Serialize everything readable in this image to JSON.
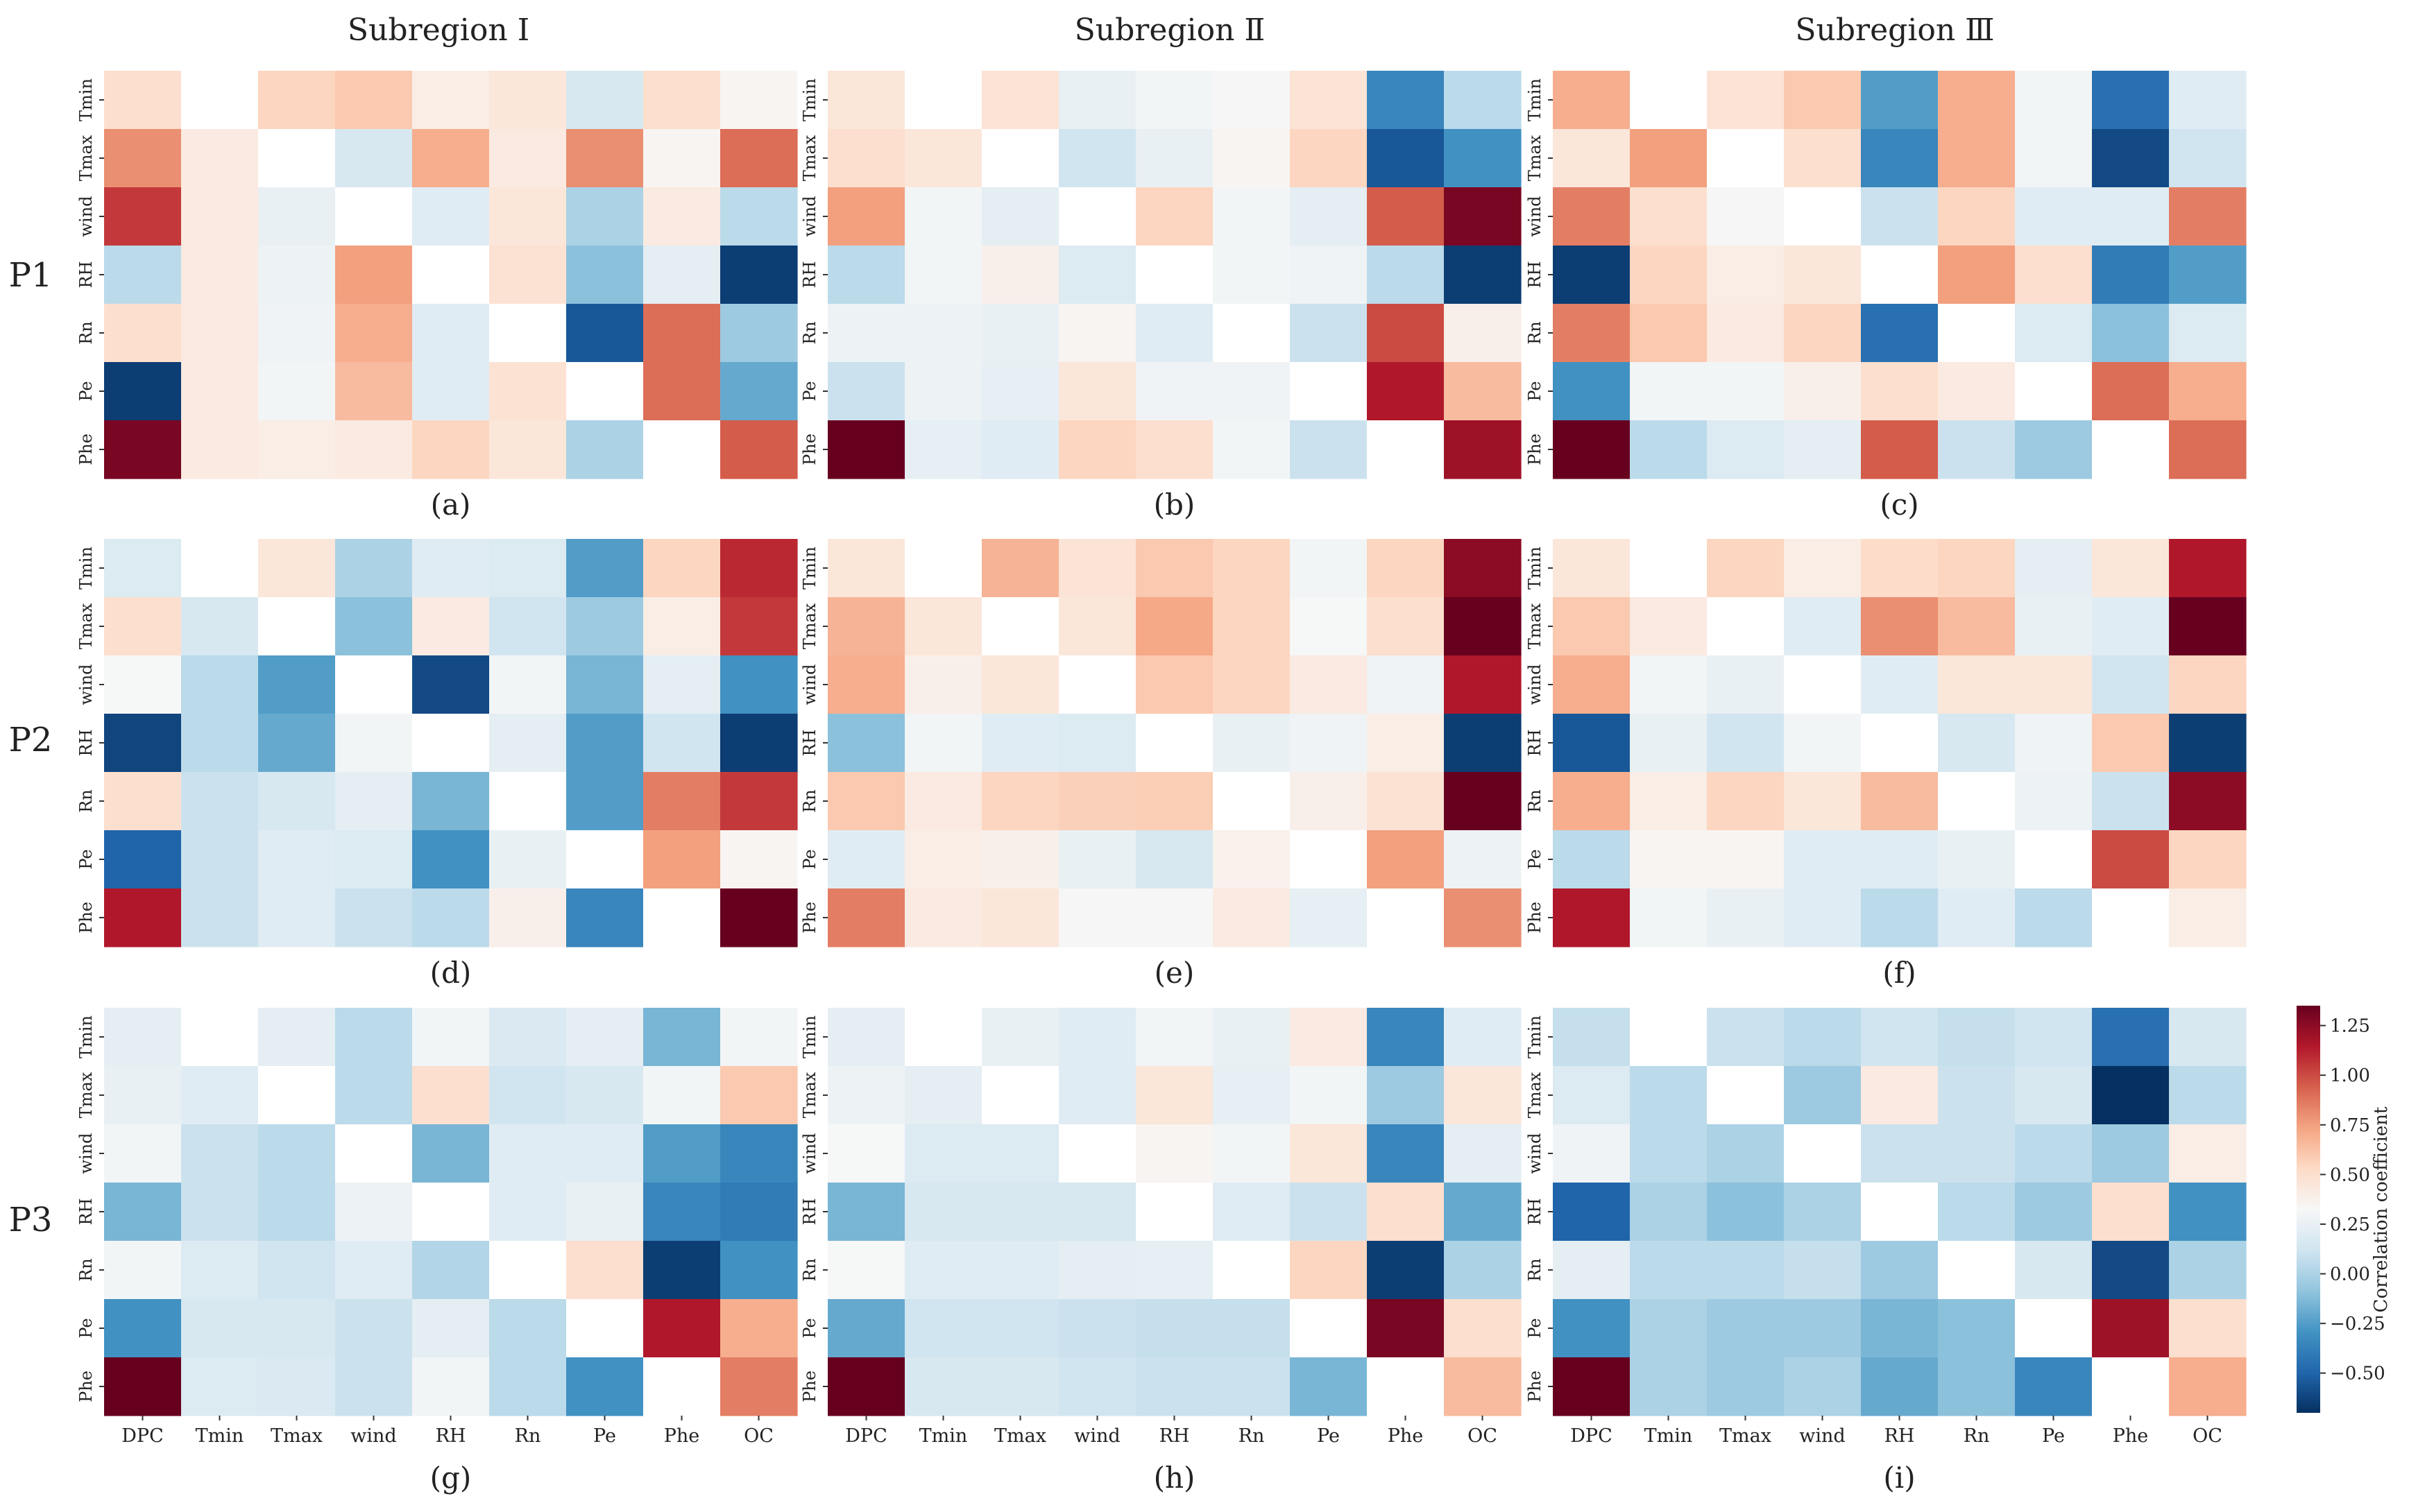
{
  "colorbar": {
    "label": "Correlation coefficient",
    "range": [
      -0.7,
      1.35
    ],
    "ticks": [
      "1.25",
      "1.00",
      "0.75",
      "0.50",
      "0.25",
      "0.00",
      "−0.25",
      "−0.50"
    ],
    "tick_values": [
      1.25,
      1.0,
      0.75,
      0.5,
      0.25,
      0.0,
      -0.25,
      -0.5
    ]
  },
  "column_titles": [
    "Subregion Ⅰ",
    "Subregion Ⅱ",
    "Subregion Ⅲ"
  ],
  "row_labels": [
    "P1",
    "P2",
    "P3"
  ],
  "chart_data": [
    {
      "type": "heatmap",
      "panel": "(a)",
      "row": "P1",
      "subregion": "Subregion Ⅰ",
      "x_categories": [
        "DPC",
        "Tmin",
        "Tmax",
        "wind",
        "RH",
        "Rn",
        "Pe",
        "Phe",
        "OC"
      ],
      "y_categories": [
        "Tmin",
        "Tmax",
        "wind",
        "RH",
        "Rn",
        "Pe",
        "Phe"
      ],
      "values": [
        [
          0.5,
          null,
          0.55,
          0.6,
          0.4,
          0.45,
          0.15,
          0.5,
          0.35
        ],
        [
          0.8,
          0.42,
          null,
          0.15,
          0.7,
          0.42,
          0.8,
          0.35,
          0.9
        ],
        [
          1.05,
          0.42,
          0.25,
          null,
          0.2,
          0.45,
          0.0,
          0.42,
          0.05
        ],
        [
          0.05,
          0.42,
          0.27,
          0.75,
          null,
          0.48,
          -0.1,
          0.22,
          -0.65
        ],
        [
          0.5,
          0.42,
          0.28,
          0.7,
          0.2,
          null,
          -0.55,
          0.9,
          -0.05
        ],
        [
          -0.65,
          0.42,
          0.3,
          0.65,
          0.2,
          0.48,
          null,
          0.9,
          -0.2
        ],
        [
          1.3,
          0.42,
          0.4,
          0.42,
          0.55,
          0.45,
          0.0,
          null,
          0.95
        ]
      ]
    },
    {
      "type": "heatmap",
      "panel": "(b)",
      "row": "P1",
      "subregion": "Subregion Ⅱ",
      "x_categories": [
        "DPC",
        "Tmin",
        "Tmax",
        "wind",
        "RH",
        "Rn",
        "Pe",
        "Phe",
        "OC"
      ],
      "y_categories": [
        "Tmin",
        "Tmax",
        "wind",
        "RH",
        "Rn",
        "Pe",
        "Phe"
      ],
      "values": [
        [
          0.45,
          null,
          0.47,
          0.25,
          0.3,
          0.33,
          0.47,
          -0.35,
          0.05
        ],
        [
          0.5,
          0.45,
          null,
          0.12,
          0.25,
          0.35,
          0.55,
          -0.55,
          -0.3
        ],
        [
          0.75,
          0.3,
          0.22,
          null,
          0.55,
          0.3,
          0.22,
          0.95,
          1.3
        ],
        [
          0.05,
          0.3,
          0.38,
          0.18,
          null,
          0.3,
          0.28,
          0.05,
          -0.65
        ],
        [
          0.27,
          0.27,
          0.25,
          0.35,
          0.2,
          null,
          0.1,
          1.0,
          0.38
        ],
        [
          0.1,
          0.27,
          0.23,
          0.45,
          0.28,
          0.28,
          null,
          1.15,
          0.65
        ],
        [
          1.35,
          0.23,
          0.2,
          0.55,
          0.5,
          0.3,
          0.1,
          null,
          1.2
        ]
      ]
    },
    {
      "type": "heatmap",
      "panel": "(c)",
      "row": "P1",
      "subregion": "Subregion Ⅲ",
      "x_categories": [
        "DPC",
        "Tmin",
        "Tmax",
        "wind",
        "RH",
        "Rn",
        "Pe",
        "Phe",
        "OC"
      ],
      "y_categories": [
        "Tmin",
        "Tmax",
        "wind",
        "RH",
        "Rn",
        "Pe",
        "Phe"
      ],
      "values": [
        [
          0.7,
          null,
          0.47,
          0.6,
          -0.25,
          0.7,
          0.3,
          -0.45,
          0.2
        ],
        [
          0.45,
          0.75,
          null,
          0.5,
          -0.35,
          0.7,
          0.3,
          -0.6,
          0.12
        ],
        [
          0.85,
          0.5,
          0.33,
          null,
          0.1,
          0.55,
          0.2,
          0.2,
          0.85
        ],
        [
          -0.65,
          0.55,
          0.4,
          0.45,
          null,
          0.75,
          0.5,
          -0.4,
          -0.25
        ],
        [
          0.85,
          0.6,
          0.42,
          0.55,
          -0.45,
          null,
          0.18,
          -0.1,
          0.18
        ],
        [
          -0.3,
          0.3,
          0.3,
          0.38,
          0.5,
          0.42,
          null,
          0.9,
          0.7
        ],
        [
          1.35,
          0.05,
          0.18,
          0.22,
          0.95,
          0.1,
          -0.05,
          null,
          0.9
        ]
      ]
    },
    {
      "type": "heatmap",
      "panel": "(d)",
      "row": "P2",
      "subregion": "Subregion Ⅰ",
      "x_categories": [
        "DPC",
        "Tmin",
        "Tmax",
        "wind",
        "RH",
        "Rn",
        "Pe",
        "Phe",
        "OC"
      ],
      "y_categories": [
        "Tmin",
        "Tmax",
        "wind",
        "RH",
        "Rn",
        "Pe",
        "Phe"
      ],
      "values": [
        [
          0.18,
          null,
          0.45,
          0.0,
          0.2,
          0.18,
          -0.25,
          0.55,
          1.1
        ],
        [
          0.5,
          0.15,
          null,
          -0.1,
          0.42,
          0.12,
          -0.05,
          0.4,
          1.05
        ],
        [
          0.32,
          0.05,
          -0.25,
          null,
          -0.6,
          0.3,
          -0.15,
          0.22,
          -0.3
        ],
        [
          -0.62,
          0.05,
          -0.2,
          0.3,
          null,
          0.22,
          -0.25,
          0.12,
          -0.65
        ],
        [
          0.5,
          0.1,
          0.15,
          0.22,
          -0.15,
          null,
          -0.25,
          0.85,
          1.05
        ],
        [
          -0.5,
          0.1,
          0.2,
          0.18,
          -0.3,
          0.25,
          null,
          0.75,
          0.35
        ],
        [
          1.15,
          0.1,
          0.2,
          0.1,
          0.05,
          0.38,
          -0.35,
          null,
          1.35
        ]
      ]
    },
    {
      "type": "heatmap",
      "panel": "(e)",
      "row": "P2",
      "subregion": "Subregion Ⅱ",
      "x_categories": [
        "DPC",
        "Tmin",
        "Tmax",
        "wind",
        "RH",
        "Rn",
        "Pe",
        "Phe",
        "OC"
      ],
      "y_categories": [
        "Tmin",
        "Tmax",
        "wind",
        "RH",
        "Rn",
        "Pe",
        "Phe"
      ],
      "values": [
        [
          0.45,
          null,
          0.68,
          0.47,
          0.6,
          0.55,
          0.3,
          0.55,
          1.25
        ],
        [
          0.68,
          0.45,
          null,
          0.45,
          0.72,
          0.55,
          0.32,
          0.5,
          1.35
        ],
        [
          0.7,
          0.38,
          0.45,
          null,
          0.6,
          0.55,
          0.42,
          0.28,
          1.15
        ],
        [
          -0.1,
          0.3,
          0.2,
          0.18,
          null,
          0.25,
          0.28,
          0.4,
          -0.65
        ],
        [
          0.6,
          0.42,
          0.55,
          0.57,
          0.58,
          null,
          0.38,
          0.48,
          1.35
        ],
        [
          0.2,
          0.4,
          0.38,
          0.25,
          0.15,
          0.37,
          null,
          0.75,
          0.27
        ],
        [
          0.85,
          0.42,
          0.45,
          0.33,
          0.33,
          0.42,
          0.23,
          null,
          0.8
        ]
      ]
    },
    {
      "type": "heatmap",
      "panel": "(f)",
      "row": "P2",
      "subregion": "Subregion Ⅲ",
      "x_categories": [
        "DPC",
        "Tmin",
        "Tmax",
        "wind",
        "RH",
        "Rn",
        "Pe",
        "Phe",
        "OC"
      ],
      "y_categories": [
        "Tmin",
        "Tmax",
        "wind",
        "RH",
        "Rn",
        "Pe",
        "Phe"
      ],
      "values": [
        [
          0.45,
          null,
          0.55,
          0.4,
          0.52,
          0.55,
          0.22,
          0.45,
          1.15
        ],
        [
          0.6,
          0.42,
          null,
          0.2,
          0.8,
          0.65,
          0.25,
          0.2,
          1.35
        ],
        [
          0.7,
          0.3,
          0.25,
          null,
          0.2,
          0.45,
          0.45,
          0.12,
          0.55
        ],
        [
          -0.55,
          0.25,
          0.12,
          0.3,
          null,
          0.15,
          0.28,
          0.6,
          -0.65
        ],
        [
          0.7,
          0.4,
          0.55,
          0.45,
          0.65,
          null,
          0.27,
          0.1,
          1.25
        ],
        [
          0.05,
          0.35,
          0.35,
          0.2,
          0.2,
          0.25,
          null,
          1.0,
          0.55
        ],
        [
          1.15,
          0.3,
          0.25,
          0.2,
          0.05,
          0.2,
          0.05,
          null,
          0.4
        ]
      ]
    },
    {
      "type": "heatmap",
      "panel": "(g)",
      "row": "P3",
      "subregion": "Subregion Ⅰ",
      "x_categories": [
        "DPC",
        "Tmin",
        "Tmax",
        "wind",
        "RH",
        "Rn",
        "Pe",
        "Phe",
        "OC"
      ],
      "y_categories": [
        "Tmin",
        "Tmax",
        "wind",
        "RH",
        "Rn",
        "Pe",
        "Phe"
      ],
      "values": [
        [
          0.22,
          null,
          0.22,
          0.05,
          0.3,
          0.17,
          0.22,
          -0.15,
          0.3
        ],
        [
          0.25,
          0.2,
          null,
          0.05,
          0.5,
          0.12,
          0.15,
          0.3,
          0.6
        ],
        [
          0.3,
          0.1,
          0.05,
          null,
          -0.15,
          0.2,
          0.2,
          -0.25,
          -0.35
        ],
        [
          -0.15,
          0.1,
          0.05,
          0.27,
          null,
          0.2,
          0.25,
          -0.35,
          -0.4
        ],
        [
          0.3,
          0.18,
          0.12,
          0.2,
          0.02,
          null,
          0.5,
          -0.65,
          -0.3
        ],
        [
          -0.3,
          0.15,
          0.15,
          0.1,
          0.22,
          0.05,
          null,
          1.15,
          0.7
        ],
        [
          1.35,
          0.18,
          0.17,
          0.1,
          0.3,
          0.05,
          -0.3,
          null,
          0.85
        ]
      ]
    },
    {
      "type": "heatmap",
      "panel": "(h)",
      "row": "P3",
      "subregion": "Subregion Ⅱ",
      "x_categories": [
        "DPC",
        "Tmin",
        "Tmax",
        "wind",
        "RH",
        "Rn",
        "Pe",
        "Phe",
        "OC"
      ],
      "y_categories": [
        "Tmin",
        "Tmax",
        "wind",
        "RH",
        "Rn",
        "Pe",
        "Phe"
      ],
      "values": [
        [
          0.22,
          null,
          0.25,
          0.2,
          0.3,
          0.25,
          0.42,
          -0.35,
          0.2
        ],
        [
          0.27,
          0.22,
          null,
          0.2,
          0.45,
          0.23,
          0.3,
          -0.05,
          0.45
        ],
        [
          0.32,
          0.18,
          0.18,
          null,
          0.35,
          0.3,
          0.45,
          -0.35,
          0.22
        ],
        [
          -0.15,
          0.15,
          0.15,
          0.15,
          null,
          0.2,
          0.1,
          0.5,
          -0.2
        ],
        [
          0.32,
          0.2,
          0.2,
          0.22,
          0.23,
          null,
          0.55,
          -0.65,
          0.0
        ],
        [
          -0.2,
          0.12,
          0.12,
          0.1,
          0.08,
          0.08,
          null,
          1.3,
          0.5
        ],
        [
          1.35,
          0.15,
          0.15,
          0.12,
          0.1,
          0.1,
          -0.15,
          null,
          0.65
        ]
      ]
    },
    {
      "type": "heatmap",
      "panel": "(i)",
      "row": "P3",
      "subregion": "Subregion Ⅲ",
      "x_categories": [
        "DPC",
        "Tmin",
        "Tmax",
        "wind",
        "RH",
        "Rn",
        "Pe",
        "Phe",
        "OC"
      ],
      "y_categories": [
        "Tmin",
        "Tmax",
        "wind",
        "RH",
        "Rn",
        "Pe",
        "Phe"
      ],
      "values": [
        [
          0.08,
          null,
          0.1,
          0.05,
          0.12,
          0.08,
          0.12,
          -0.45,
          0.15
        ],
        [
          0.18,
          0.05,
          null,
          -0.05,
          0.42,
          0.1,
          0.15,
          -0.7,
          0.05
        ],
        [
          0.28,
          0.05,
          0.0,
          null,
          0.1,
          0.1,
          0.05,
          -0.05,
          0.4
        ],
        [
          -0.5,
          0.0,
          -0.1,
          0.0,
          null,
          0.05,
          -0.05,
          0.5,
          -0.3
        ],
        [
          0.22,
          0.05,
          0.05,
          0.08,
          -0.05,
          null,
          0.15,
          -0.6,
          0.0
        ],
        [
          -0.3,
          0.0,
          -0.05,
          -0.05,
          -0.15,
          -0.1,
          null,
          1.2,
          0.5
        ],
        [
          1.35,
          0.0,
          -0.05,
          0.0,
          -0.2,
          -0.1,
          -0.35,
          null,
          0.7
        ]
      ]
    }
  ]
}
